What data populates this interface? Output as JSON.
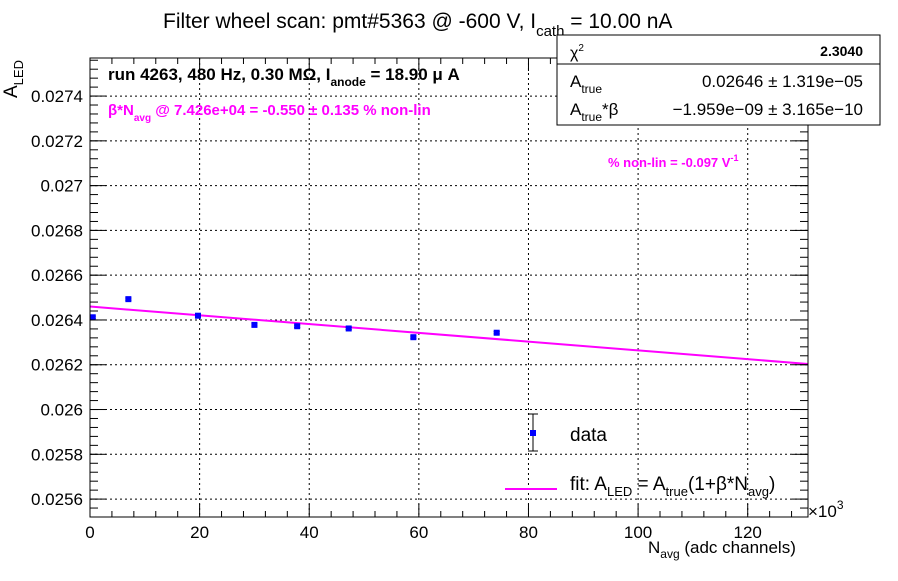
{
  "chart_data": {
    "type": "scatter",
    "title": {
      "pre": "Filter wheel scan: pmt#5363 @  -600 V, I",
      "sub": "cath",
      "post": " = 10.00 nA"
    },
    "xlabel": {
      "main": "N",
      "sub": "avg",
      "post": " (adc channels)"
    },
    "ylabel": {
      "main": "A",
      "sub": "LED"
    },
    "x_multiplier": "×10",
    "x_multiplier_exp": "3",
    "xlim": [
      0,
      131
    ],
    "ylim": [
      0.02552,
      0.02757
    ],
    "xticks": [
      0,
      20,
      40,
      60,
      80,
      100,
      120
    ],
    "xtick_labels": [
      "0",
      "20",
      "40",
      "60",
      "80",
      "100",
      "120"
    ],
    "yticks": [
      0.0256,
      0.0258,
      0.026,
      0.0262,
      0.0264,
      0.0266,
      0.0268,
      0.027,
      0.0272,
      0.0274
    ],
    "ytick_labels": [
      "0.0256",
      "0.0258",
      "0.026",
      "0.0262",
      "0.0264",
      "0.0266",
      "0.0268",
      "0.027",
      "0.0272",
      "0.0274"
    ],
    "grid": true,
    "series": [
      {
        "name": "data",
        "color": "#0000ff",
        "x": [
          0.5,
          7.0,
          19.7,
          30.0,
          37.8,
          47.2,
          59.0,
          74.2
        ],
        "y": [
          0.026412,
          0.026493,
          0.026419,
          0.026378,
          0.026372,
          0.026362,
          0.026323,
          0.026343
        ],
        "err": [
          5e-06,
          5e-06,
          5e-06,
          5e-06,
          5e-06,
          5e-06,
          5e-06,
          5e-06
        ]
      }
    ],
    "fit": {
      "color": "#ff00ff",
      "a_true": 0.02646,
      "a_beta": -1.959e-09,
      "x_range": [
        0,
        131
      ]
    },
    "legend": {
      "position": "bottom-right",
      "data_label": "data",
      "fit_label": {
        "pre": "fit: A",
        "sub1": "LED",
        "mid": " = A",
        "sub2": "true",
        "mid2": "(1+β*N",
        "sub3": "avg",
        "post": ")"
      }
    },
    "stats_box": {
      "position": "top-right",
      "chi2_label": "χ",
      "chi2_sup": "2",
      "chi2_value": "2.3040",
      "atrue_label": "A",
      "atrue_sub": "true",
      "atrue_value": "0.02646 ± 1.319e−05",
      "abeta_label": "A",
      "abeta_sub": "true",
      "abeta_post": "*β",
      "abeta_value": "−1.959e−09 ± 3.165e−10"
    },
    "annotations": {
      "run_info": {
        "pre": "run 4263, 480 Hz, 0.30 MΩ, I",
        "sub": "anode",
        "post": " = 18.90 μ A"
      },
      "beta_line": {
        "pre": "β*N",
        "sub": "avg",
        "post": " @ 7.426e+04 = -0.550 ± 0.135 % non-lin"
      },
      "nonlin_line": {
        "pre": "% non-lin = -0.097 V",
        "sup": "-1"
      },
      "accent_color": "#ff00ff"
    }
  }
}
